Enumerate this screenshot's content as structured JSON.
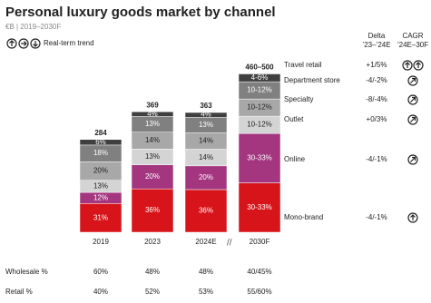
{
  "chart_data": {
    "type": "stacked-bar",
    "title": "Personal luxury goods market by channel",
    "subtitle": "€B | 2019–2030F",
    "legend_title": "Real-term trend",
    "categories": [
      "2019",
      "2023",
      "2024E",
      "2030F"
    ],
    "totals": {
      "values": [
        284,
        369,
        363,
        480
      ],
      "value_labels": [
        "284",
        "369",
        "363",
        "460–500"
      ]
    },
    "delta_header": [
      "Delta",
      "’23–’24E"
    ],
    "cagr_header": [
      "CAGR",
      "’24E–30F"
    ],
    "series": [
      {
        "name": "Mono-brand",
        "color": "#d7141a",
        "values": [
          31,
          36,
          36,
          31.5
        ],
        "value_labels": [
          "31%",
          "36%",
          "36%",
          "30-33%"
        ],
        "delta": "-4/-1%"
      },
      {
        "name": "Online",
        "color": "#a3367f",
        "values": [
          12,
          20,
          20,
          31.5
        ],
        "value_labels": [
          "12%",
          "20%",
          "20%",
          "30-33%"
        ],
        "delta": "-4/-1%"
      },
      {
        "name": "Outlet",
        "color": "#d4d4d4",
        "values": [
          13,
          13,
          14,
          11
        ],
        "value_labels": [
          "13%",
          "13%",
          "14%",
          "10-12%"
        ],
        "delta": "+0/3%"
      },
      {
        "name": "Specialty",
        "color": "#a8a8a8",
        "values": [
          20,
          14,
          14,
          11
        ],
        "value_labels": [
          "20%",
          "14%",
          "14%",
          "10-12%"
        ],
        "delta": "-8/-4%"
      },
      {
        "name": "Department store",
        "color": "#808080",
        "values": [
          18,
          13,
          13,
          11
        ],
        "value_labels": [
          "18%",
          "13%",
          "13%",
          "10-12%"
        ],
        "delta": "-4/-2%"
      },
      {
        "name": "Travel retail",
        "color": "#3f3f3f",
        "values": [
          6,
          4,
          4,
          5
        ],
        "value_labels": [
          "6%",
          "4%",
          "4%",
          "4-6%"
        ],
        "delta": "+1/5%"
      }
    ],
    "rows": [
      {
        "label": "Wholesale %",
        "values": [
          "60%",
          "48%",
          "48%",
          "40/45%"
        ]
      },
      {
        "label": "Retail %",
        "values": [
          "40%",
          "52%",
          "53%",
          "55/60%"
        ]
      }
    ]
  }
}
